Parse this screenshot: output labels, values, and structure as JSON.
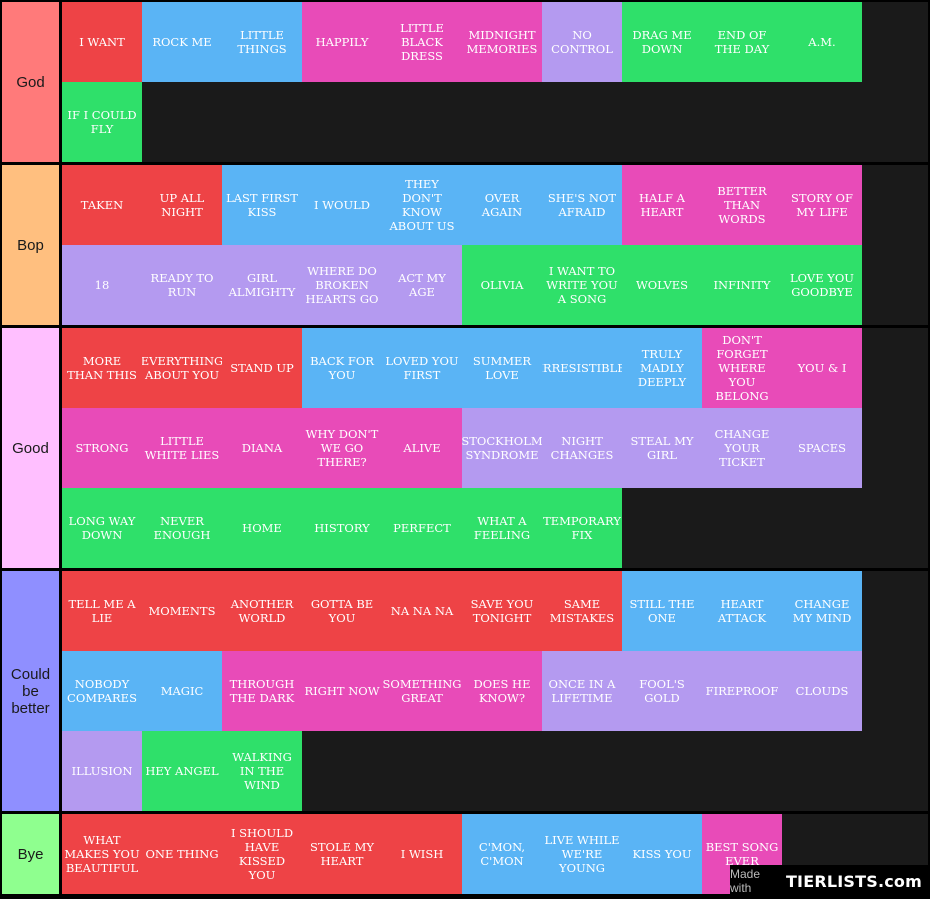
{
  "colors": {
    "red": "#ee4346",
    "blue": "#5ab4f5",
    "pink": "#e84bb8",
    "purple": "#b49af0",
    "green": "#2fe06a"
  },
  "tiers": [
    {
      "label": "God",
      "color": "#ff7a7a",
      "items": [
        {
          "title": "I WANT",
          "color": "red"
        },
        {
          "title": "ROCK ME",
          "color": "blue"
        },
        {
          "title": "LITTLE THINGS",
          "color": "blue"
        },
        {
          "title": "HAPPILY",
          "color": "pink"
        },
        {
          "title": "LITTLE BLACK DRESS",
          "color": "pink"
        },
        {
          "title": "MIDNIGHT MEMORIES",
          "color": "pink"
        },
        {
          "title": "NO CONTROL",
          "color": "purple"
        },
        {
          "title": "DRAG ME DOWN",
          "color": "green"
        },
        {
          "title": "END OF THE DAY",
          "color": "green"
        },
        {
          "title": "A.M.",
          "color": "green"
        },
        {
          "title": "IF I COULD FLY",
          "color": "green"
        }
      ]
    },
    {
      "label": "Bop",
      "color": "#ffbf7f",
      "items": [
        {
          "title": "TAKEN",
          "color": "red"
        },
        {
          "title": "UP ALL NIGHT",
          "color": "red"
        },
        {
          "title": "LAST FIRST KISS",
          "color": "blue"
        },
        {
          "title": "I WOULD",
          "color": "blue"
        },
        {
          "title": "THEY DON'T KNOW ABOUT US",
          "color": "blue"
        },
        {
          "title": "OVER AGAIN",
          "color": "blue"
        },
        {
          "title": "SHE'S NOT AFRAID",
          "color": "blue"
        },
        {
          "title": "HALF A HEART",
          "color": "pink"
        },
        {
          "title": "BETTER THAN WORDS",
          "color": "pink"
        },
        {
          "title": "STORY OF MY LIFE",
          "color": "pink"
        },
        {
          "title": "18",
          "color": "purple"
        },
        {
          "title": "READY TO RUN",
          "color": "purple"
        },
        {
          "title": "GIRL ALMIGHTY",
          "color": "purple"
        },
        {
          "title": "WHERE DO BROKEN HEARTS GO",
          "color": "purple"
        },
        {
          "title": "ACT MY AGE",
          "color": "purple"
        },
        {
          "title": "OLIVIA",
          "color": "green"
        },
        {
          "title": "I WANT TO WRITE YOU A SONG",
          "color": "green"
        },
        {
          "title": "WOLVES",
          "color": "green"
        },
        {
          "title": "INFINITY",
          "color": "green"
        },
        {
          "title": "LOVE YOU GOODBYE",
          "color": "green"
        }
      ]
    },
    {
      "label": "Good",
      "color": "#ffbfff",
      "items": [
        {
          "title": "MORE THAN THIS",
          "color": "red"
        },
        {
          "title": "EVERYTHING ABOUT YOU",
          "color": "red"
        },
        {
          "title": "STAND UP",
          "color": "red"
        },
        {
          "title": "BACK FOR YOU",
          "color": "blue"
        },
        {
          "title": "LOVED YOU FIRST",
          "color": "blue"
        },
        {
          "title": "SUMMER LOVE",
          "color": "blue"
        },
        {
          "title": "IRRESISTIBLE",
          "color": "blue"
        },
        {
          "title": "TRULY MADLY DEEPLY",
          "color": "blue"
        },
        {
          "title": "DON'T FORGET WHERE YOU BELONG",
          "color": "pink"
        },
        {
          "title": "YOU & I",
          "color": "pink"
        },
        {
          "title": "STRONG",
          "color": "pink"
        },
        {
          "title": "LITTLE WHITE LIES",
          "color": "pink"
        },
        {
          "title": "DIANA",
          "color": "pink"
        },
        {
          "title": "WHY DON'T WE GO THERE?",
          "color": "pink"
        },
        {
          "title": "ALIVE",
          "color": "pink"
        },
        {
          "title": "STOCKHOLM SYNDROME",
          "color": "purple"
        },
        {
          "title": "NIGHT CHANGES",
          "color": "purple"
        },
        {
          "title": "STEAL MY GIRL",
          "color": "purple"
        },
        {
          "title": "CHANGE YOUR TICKET",
          "color": "purple"
        },
        {
          "title": "SPACES",
          "color": "purple"
        },
        {
          "title": "LONG WAY DOWN",
          "color": "green"
        },
        {
          "title": "NEVER ENOUGH",
          "color": "green"
        },
        {
          "title": "HOME",
          "color": "green"
        },
        {
          "title": "HISTORY",
          "color": "green"
        },
        {
          "title": "PERFECT",
          "color": "green"
        },
        {
          "title": "WHAT A FEELING",
          "color": "green"
        },
        {
          "title": "TEMPORARY FIX",
          "color": "green"
        }
      ]
    },
    {
      "label": "Could be better",
      "color": "#8f8fff",
      "items": [
        {
          "title": "TELL ME A LIE",
          "color": "red"
        },
        {
          "title": "MOMENTS",
          "color": "red"
        },
        {
          "title": "ANOTHER WORLD",
          "color": "red"
        },
        {
          "title": "GOTTA BE YOU",
          "color": "red"
        },
        {
          "title": "NA NA NA",
          "color": "red"
        },
        {
          "title": "SAVE YOU TONIGHT",
          "color": "red"
        },
        {
          "title": "SAME MISTAKES",
          "color": "red"
        },
        {
          "title": "STILL THE ONE",
          "color": "blue"
        },
        {
          "title": "HEART ATTACK",
          "color": "blue"
        },
        {
          "title": "CHANGE MY MIND",
          "color": "blue"
        },
        {
          "title": "NOBODY COMPARES",
          "color": "blue"
        },
        {
          "title": "MAGIC",
          "color": "blue"
        },
        {
          "title": "THROUGH THE DARK",
          "color": "pink"
        },
        {
          "title": "RIGHT NOW",
          "color": "pink"
        },
        {
          "title": "SOMETHING GREAT",
          "color": "pink"
        },
        {
          "title": "DOES HE KNOW?",
          "color": "pink"
        },
        {
          "title": "ONCE IN A LIFETIME",
          "color": "purple"
        },
        {
          "title": "FOOL'S GOLD",
          "color": "purple"
        },
        {
          "title": "FIREPROOF",
          "color": "purple"
        },
        {
          "title": "CLOUDS",
          "color": "purple"
        },
        {
          "title": "ILLUSION",
          "color": "purple"
        },
        {
          "title": "HEY ANGEL",
          "color": "green"
        },
        {
          "title": "WALKING IN THE WIND",
          "color": "green"
        }
      ]
    },
    {
      "label": "Bye",
      "color": "#8fff8f",
      "items": [
        {
          "title": "WHAT MAKES YOU BEAUTIFUL",
          "color": "red"
        },
        {
          "title": "ONE THING",
          "color": "red"
        },
        {
          "title": "I SHOULD HAVE KISSED YOU",
          "color": "red"
        },
        {
          "title": "STOLE MY HEART",
          "color": "red"
        },
        {
          "title": "I WISH",
          "color": "red"
        },
        {
          "title": "C'MON, C'MON",
          "color": "blue"
        },
        {
          "title": "LIVE WHILE WE'RE YOUNG",
          "color": "blue"
        },
        {
          "title": "KISS YOU",
          "color": "blue"
        },
        {
          "title": "BEST SONG EVER",
          "color": "pink"
        }
      ]
    }
  ],
  "watermark": {
    "made_with": "Made with",
    "logo": "TIERLISTS.com"
  }
}
